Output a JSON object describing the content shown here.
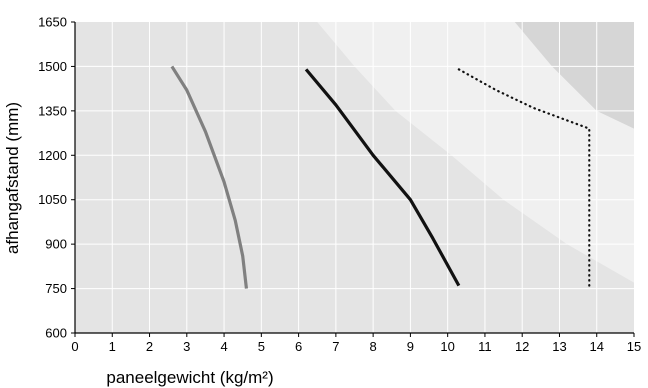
{
  "chart_data": {
    "type": "line",
    "title": "",
    "xlabel": "paneelgewicht (kg/m²)",
    "ylabel": "afhangafstand (mm)",
    "xlim": [
      0,
      15
    ],
    "ylim": [
      600,
      1650
    ],
    "xticks": [
      0,
      1,
      2,
      3,
      4,
      5,
      6,
      7,
      8,
      9,
      10,
      11,
      12,
      13,
      14,
      15
    ],
    "yticks": [
      600,
      750,
      900,
      1050,
      1200,
      1350,
      1500,
      1650
    ],
    "grid": true,
    "legend": "none",
    "regions": [
      {
        "boundary": [
          [
            6.5,
            1650
          ],
          [
            7.5,
            1500
          ],
          [
            8.6,
            1350
          ],
          [
            10.1,
            1200
          ],
          [
            11.5,
            1050
          ],
          [
            13.2,
            900
          ],
          [
            15,
            770
          ]
        ],
        "color": "#f0f0f0"
      },
      {
        "boundary": [
          [
            11.8,
            1650
          ],
          [
            12.8,
            1500
          ],
          [
            14,
            1350
          ],
          [
            15,
            1290
          ]
        ],
        "color": "#d6d6d6"
      }
    ],
    "series": [
      {
        "color": "#808080",
        "style": "solid",
        "x": [
          2.6,
          3.0,
          3.5,
          4.0,
          4.3,
          4.5,
          4.6
        ],
        "y": [
          1500,
          1420,
          1280,
          1110,
          980,
          860,
          750
        ]
      },
      {
        "color": "#111111",
        "style": "solid",
        "x": [
          6.2,
          7.0,
          8.0,
          9.0,
          9.6,
          10.3
        ],
        "y": [
          1490,
          1370,
          1200,
          1050,
          920,
          760
        ]
      },
      {
        "color": "#111111",
        "style": "dotted",
        "x": [
          10.3,
          11.3,
          12.3,
          13.8,
          13.8
        ],
        "y": [
          1490,
          1420,
          1360,
          1290,
          750
        ]
      }
    ]
  }
}
